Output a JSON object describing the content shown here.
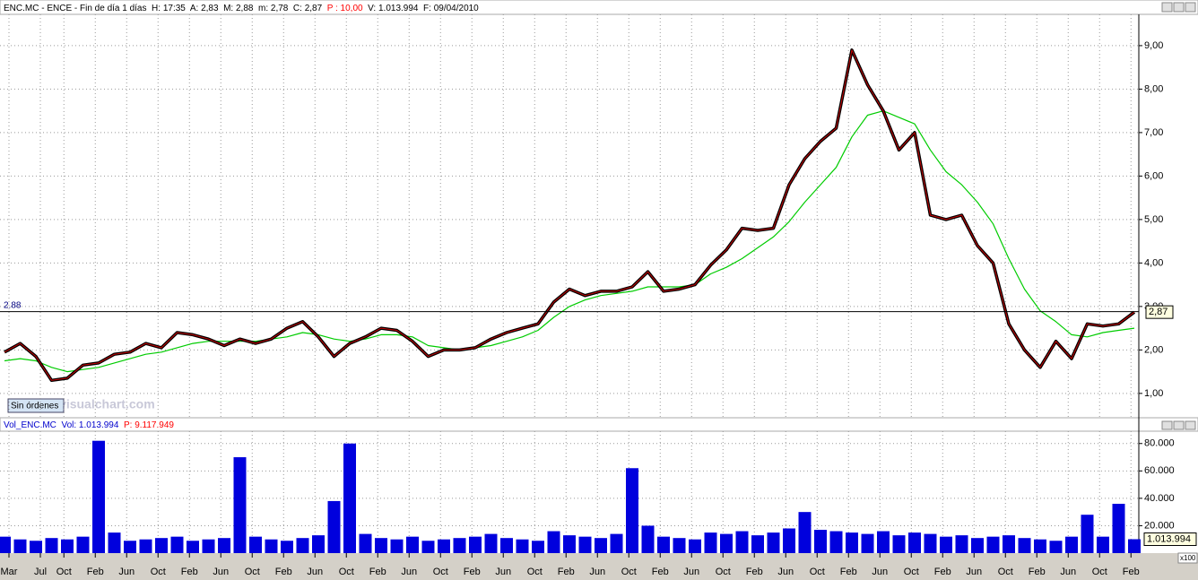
{
  "chart_data": [
    {
      "type": "line",
      "title_parts": [
        {
          "text": "ENC.MC - ENCE - Fin de día 1 días  H: 17:35  A: 2,83  M: 2,88  m: 2,78  C: 2,87  ",
          "color": "#000000"
        },
        {
          "text": "P : 10,00",
          "color": "#ff0000"
        },
        {
          "text": "  V: 1.013.994  F: 09/04/2010",
          "color": "#000000"
        }
      ],
      "series": [
        {
          "color": "#000000",
          "values": [
            1.95,
            2.15,
            1.85,
            1.3,
            1.35,
            1.65,
            1.7,
            1.9,
            1.95,
            2.15,
            2.05,
            2.4,
            2.35,
            2.25,
            2.1,
            2.25,
            2.15,
            2.25,
            2.5,
            2.65,
            2.3,
            1.85,
            2.15,
            2.3,
            2.5,
            2.45,
            2.2,
            1.85,
            2.0,
            2.0,
            2.05,
            2.25,
            2.4,
            2.5,
            2.6,
            3.1,
            3.4,
            3.25,
            3.35,
            3.35,
            3.45,
            3.8,
            3.35,
            3.4,
            3.5,
            3.95,
            4.3,
            4.8,
            4.75,
            4.8,
            5.8,
            6.4,
            6.8,
            7.1,
            8.9,
            8.1,
            7.5,
            6.6,
            7.0,
            5.1,
            5.0,
            5.1,
            4.4,
            4.0,
            2.6,
            2.0,
            1.6,
            2.2,
            1.8,
            2.6,
            2.55,
            2.6,
            2.87
          ]
        },
        {
          "color": "#00cc00",
          "values": [
            1.75,
            1.8,
            1.75,
            1.6,
            1.5,
            1.55,
            1.6,
            1.7,
            1.8,
            1.9,
            1.95,
            2.05,
            2.15,
            2.2,
            2.2,
            2.2,
            2.2,
            2.25,
            2.3,
            2.4,
            2.35,
            2.25,
            2.2,
            2.25,
            2.35,
            2.35,
            2.3,
            2.1,
            2.05,
            2.0,
            2.05,
            2.1,
            2.2,
            2.3,
            2.45,
            2.75,
            3.0,
            3.15,
            3.25,
            3.3,
            3.35,
            3.45,
            3.45,
            3.45,
            3.5,
            3.75,
            3.9,
            4.1,
            4.35,
            4.6,
            4.95,
            5.4,
            5.8,
            6.2,
            6.9,
            7.4,
            7.5,
            7.35,
            7.2,
            6.6,
            6.1,
            5.8,
            5.4,
            4.9,
            4.1,
            3.4,
            2.9,
            2.65,
            2.35,
            2.3,
            2.4,
            2.45,
            2.5
          ]
        }
      ],
      "overlay_color": "#cc0000",
      "level": {
        "value": 2.88,
        "label": "2.88"
      },
      "marker": {
        "value": 2.87,
        "label": "2,87"
      },
      "ylim": [
        0.44,
        9.72
      ],
      "yticks": [
        {
          "value": 1,
          "label": "1,00"
        },
        {
          "value": 2,
          "label": "2,00"
        },
        {
          "value": 3,
          "label": "3,00"
        },
        {
          "value": 4,
          "label": "4,00"
        },
        {
          "value": 5,
          "label": "5,00"
        },
        {
          "value": 6,
          "label": "6,00"
        },
        {
          "value": 7,
          "label": "7,00"
        },
        {
          "value": 8,
          "label": "8,00"
        },
        {
          "value": 9,
          "label": "9,00"
        }
      ],
      "grid": true
    },
    {
      "type": "bar",
      "title_parts": [
        {
          "text": "Vol_ENC.MC  Vol: 1.013.994  ",
          "color": "#0000cc"
        },
        {
          "text": "P: 9.117.949",
          "color": "#ff0000"
        }
      ],
      "color": "#0000dd",
      "values": [
        12000,
        10000,
        9000,
        11000,
        10000,
        12000,
        82000,
        15000,
        9000,
        10000,
        11000,
        12000,
        9000,
        10000,
        11000,
        70000,
        12000,
        10000,
        9000,
        11000,
        13000,
        38000,
        80000,
        14000,
        11000,
        10000,
        12000,
        9000,
        10000,
        11000,
        12000,
        14000,
        11000,
        10000,
        9000,
        16000,
        13000,
        12000,
        11000,
        14000,
        62000,
        20000,
        12000,
        11000,
        10000,
        15000,
        14000,
        16000,
        13000,
        15000,
        18000,
        30000,
        17000,
        16000,
        15000,
        14000,
        16000,
        13000,
        15000,
        14000,
        12000,
        13000,
        11000,
        12000,
        13000,
        11000,
        10000,
        9000,
        12000,
        28000,
        12000,
        36000,
        10139.94
      ],
      "marker": {
        "value": 10139.94,
        "label": "1.013.994"
      },
      "ylim": [
        0,
        89000
      ],
      "yticks": [
        {
          "value": 20000,
          "label": "20.000"
        },
        {
          "value": 40000,
          "label": "40.000"
        },
        {
          "value": 60000,
          "label": "60.000"
        },
        {
          "value": 80000,
          "label": "80.000"
        }
      ],
      "scale_note": "x100",
      "xtick_labels": [
        "Mar",
        "Jul",
        "Oct",
        "Feb",
        "Jun",
        "Oct",
        "Feb",
        "Jun",
        "Oct",
        "Feb",
        "Jun",
        "Oct",
        "Feb",
        "Jun",
        "Oct",
        "Feb",
        "Jun",
        "Oct",
        "Feb",
        "Jun",
        "Oct",
        "Feb",
        "Jun",
        "Oct",
        "Feb",
        "Jun",
        "Oct",
        "Feb",
        "Jun",
        "Oct",
        "Feb",
        "Jun",
        "Oct",
        "Feb",
        "Jun",
        "Oct",
        "Feb"
      ],
      "grid": true
    }
  ],
  "watermark": "www.visualchart.com",
  "button": "Sin órdenes"
}
